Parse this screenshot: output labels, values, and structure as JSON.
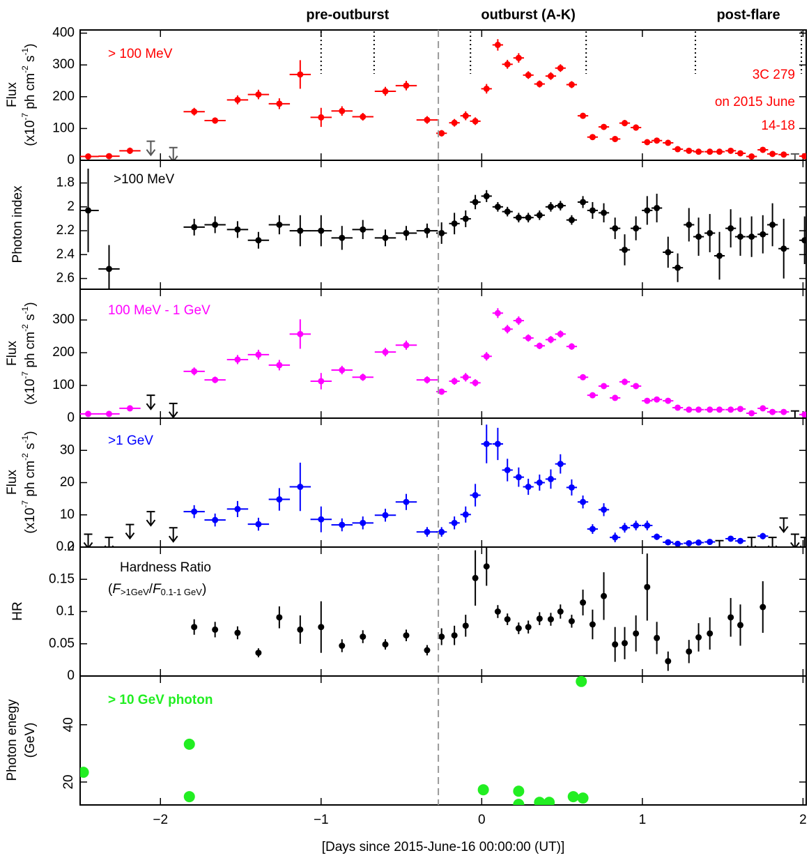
{
  "chart_data": [
    {
      "type": "errorbar",
      "label": "> 100 MeV",
      "source": [
        "3C 279",
        "on 2015 June",
        "14-18"
      ],
      "phases": [
        "pre-outburst",
        "outburst (A-K)",
        "post-flare"
      ],
      "phase_boundaries": [
        -1.0,
        -0.67,
        -0.07,
        0.65,
        1.33,
        1.99
      ],
      "reference_line": -0.27,
      "ylabel": "Flux",
      "ylabel_unit": [
        "(x10",
        "-7",
        " ph cm",
        "-2",
        " s",
        "-1",
        ")"
      ],
      "color": "#ff0000",
      "ylim": [
        0,
        410
      ],
      "yticks": [
        0,
        100,
        200,
        300,
        400
      ],
      "x": [
        -2.45,
        -2.32,
        -2.19,
        -2.06,
        -1.92,
        -1.79,
        -1.66,
        -1.52,
        -1.39,
        -1.26,
        -1.13,
        -1.0,
        -0.87,
        -0.74,
        -0.6,
        -0.47,
        -0.34,
        -0.25,
        -0.17,
        -0.1,
        -0.04,
        0.03,
        0.1,
        0.16,
        0.23,
        0.29,
        0.36,
        0.43,
        0.49,
        0.56,
        0.63,
        0.69,
        0.76,
        0.83,
        0.89,
        0.96,
        1.03,
        1.09,
        1.16,
        1.22,
        1.29,
        1.35,
        1.42,
        1.48,
        1.55,
        1.61,
        1.68,
        1.75,
        1.81,
        1.88,
        1.95,
        2.01
      ],
      "xerr": [
        0.066,
        0.066,
        0.066,
        0.066,
        0.066,
        0.066,
        0.066,
        0.066,
        0.066,
        0.066,
        0.066,
        0.066,
        0.066,
        0.066,
        0.066,
        0.066,
        0.066,
        0.033,
        0.033,
        0.033,
        0.033,
        0.033,
        0.033,
        0.033,
        0.033,
        0.033,
        0.033,
        0.033,
        0.033,
        0.033,
        0.033,
        0.033,
        0.033,
        0.033,
        0.033,
        0.033,
        0.033,
        0.033,
        0.033,
        0.033,
        0.033,
        0.033,
        0.033,
        0.033,
        0.033,
        0.033,
        0.033,
        0.033,
        0.033,
        0.033,
        0.033,
        0.033
      ],
      "values": [
        12,
        13,
        30,
        null,
        null,
        153,
        125,
        190,
        207,
        178,
        270,
        135,
        155,
        137,
        217,
        235,
        127,
        85,
        118,
        140,
        123,
        225,
        363,
        302,
        322,
        268,
        240,
        265,
        290,
        238,
        140,
        73,
        105,
        67,
        117,
        103,
        57,
        62,
        55,
        35,
        30,
        27,
        27,
        27,
        30,
        22,
        12,
        33,
        20,
        18,
        null,
        13
      ],
      "yerr": [
        4,
        4,
        10,
        null,
        null,
        12,
        10,
        14,
        15,
        17,
        45,
        30,
        15,
        12,
        14,
        15,
        12,
        10,
        12,
        14,
        12,
        15,
        18,
        14,
        15,
        12,
        11,
        12,
        12,
        11,
        7,
        7,
        8,
        7,
        10,
        10,
        6,
        6,
        5,
        4,
        4,
        4,
        4,
        4,
        4,
        4,
        3,
        4,
        3,
        3,
        null,
        3
      ],
      "upper_limits": {
        "x": [
          -2.06,
          -1.92,
          1.95
        ],
        "values": [
          60,
          40,
          20
        ],
        "color": "#555555"
      }
    },
    {
      "type": "errorbar",
      "label": ">100 MeV",
      "ylabel": "Photon index",
      "color": "#000000",
      "ylim": [
        2.69,
        1.61
      ],
      "yticks": [
        1.8,
        2,
        2.2,
        2.4,
        2.6
      ],
      "x": [
        -2.45,
        -2.32,
        -2.19,
        -2.06,
        -1.92,
        -1.79,
        -1.66,
        -1.52,
        -1.39,
        -1.26,
        -1.13,
        -1.0,
        -0.87,
        -0.74,
        -0.6,
        -0.47,
        -0.34,
        -0.25,
        -0.17,
        -0.1,
        -0.04,
        0.03,
        0.1,
        0.16,
        0.23,
        0.29,
        0.36,
        0.43,
        0.49,
        0.56,
        0.63,
        0.69,
        0.76,
        0.83,
        0.89,
        0.96,
        1.03,
        1.09,
        1.16,
        1.22,
        1.29,
        1.35,
        1.42,
        1.48,
        1.55,
        1.61,
        1.68,
        1.75,
        1.81,
        1.88,
        1.95,
        2.01
      ],
      "xerr": [
        0.066,
        0.066,
        0.066,
        0.066,
        0.066,
        0.066,
        0.066,
        0.066,
        0.066,
        0.066,
        0.066,
        0.066,
        0.066,
        0.066,
        0.066,
        0.066,
        0.066,
        0.033,
        0.033,
        0.033,
        0.033,
        0.033,
        0.033,
        0.033,
        0.033,
        0.033,
        0.033,
        0.033,
        0.033,
        0.033,
        0.033,
        0.033,
        0.033,
        0.033,
        0.033,
        0.033,
        0.033,
        0.033,
        0.033,
        0.033,
        0.033,
        0.033,
        0.033,
        0.033,
        0.033,
        0.033,
        0.033,
        0.033,
        0.033,
        0.033,
        0.033,
        0.033
      ],
      "values": [
        2.03,
        2.52,
        null,
        null,
        null,
        2.17,
        2.15,
        2.19,
        2.28,
        2.15,
        2.2,
        2.2,
        2.26,
        2.19,
        2.26,
        2.22,
        2.2,
        2.22,
        2.14,
        2.1,
        1.96,
        1.91,
        2.0,
        2.04,
        2.09,
        2.09,
        2.07,
        2.0,
        1.99,
        2.11,
        1.96,
        2.03,
        2.05,
        2.18,
        2.36,
        2.18,
        2.03,
        2.01,
        2.38,
        2.51,
        2.15,
        2.25,
        2.22,
        2.41,
        2.18,
        2.25,
        2.25,
        2.23,
        2.15,
        2.35,
        null,
        2.28
      ],
      "yerr": [
        0.35,
        0.2,
        null,
        null,
        null,
        0.07,
        0.07,
        0.07,
        0.07,
        0.08,
        0.13,
        0.13,
        0.1,
        0.08,
        0.07,
        0.06,
        0.06,
        0.09,
        0.09,
        0.07,
        0.06,
        0.05,
        0.04,
        0.04,
        0.04,
        0.04,
        0.04,
        0.04,
        0.04,
        0.04,
        0.05,
        0.07,
        0.08,
        0.09,
        0.13,
        0.1,
        0.12,
        0.12,
        0.13,
        0.12,
        0.14,
        0.16,
        0.16,
        0.2,
        0.16,
        0.16,
        0.17,
        0.16,
        0.18,
        0.25,
        null,
        0.2
      ]
    },
    {
      "type": "errorbar",
      "label": "100 MeV - 1 GeV",
      "ylabel": "Flux",
      "ylabel_unit": [
        "(x10",
        "-7",
        " ph cm",
        "-2",
        " s",
        "-1",
        ")"
      ],
      "color": "#ff00ff",
      "ylim": [
        0,
        394
      ],
      "yticks": [
        0,
        100,
        200,
        300
      ],
      "x": [
        -2.45,
        -2.32,
        -2.19,
        -2.06,
        -1.92,
        -1.79,
        -1.66,
        -1.52,
        -1.39,
        -1.26,
        -1.13,
        -1.0,
        -0.87,
        -0.74,
        -0.6,
        -0.47,
        -0.34,
        -0.25,
        -0.17,
        -0.1,
        -0.04,
        0.03,
        0.1,
        0.16,
        0.23,
        0.29,
        0.36,
        0.43,
        0.49,
        0.56,
        0.63,
        0.69,
        0.76,
        0.83,
        0.89,
        0.96,
        1.03,
        1.09,
        1.16,
        1.22,
        1.29,
        1.35,
        1.42,
        1.48,
        1.55,
        1.61,
        1.68,
        1.75,
        1.81,
        1.88,
        1.95,
        2.01
      ],
      "xerr": [
        0.066,
        0.066,
        0.066,
        0.066,
        0.066,
        0.066,
        0.066,
        0.066,
        0.066,
        0.066,
        0.066,
        0.066,
        0.066,
        0.066,
        0.066,
        0.066,
        0.066,
        0.033,
        0.033,
        0.033,
        0.033,
        0.033,
        0.033,
        0.033,
        0.033,
        0.033,
        0.033,
        0.033,
        0.033,
        0.033,
        0.033,
        0.033,
        0.033,
        0.033,
        0.033,
        0.033,
        0.033,
        0.033,
        0.033,
        0.033,
        0.033,
        0.033,
        0.033,
        0.033,
        0.033,
        0.033,
        0.033,
        0.033,
        0.033,
        0.033,
        0.033,
        0.033
      ],
      "values": [
        13,
        13,
        30,
        null,
        null,
        143,
        117,
        179,
        194,
        162,
        257,
        113,
        147,
        125,
        202,
        223,
        117,
        81,
        113,
        125,
        108,
        189,
        321,
        272,
        298,
        245,
        221,
        240,
        257,
        219,
        125,
        70,
        98,
        62,
        111,
        98,
        53,
        57,
        53,
        32,
        26,
        26,
        26,
        26,
        26,
        28,
        15,
        30,
        19,
        19,
        null,
        11
      ],
      "yerr": [
        4,
        4,
        9,
        null,
        null,
        12,
        10,
        14,
        15,
        16,
        45,
        25,
        13,
        11,
        13,
        14,
        11,
        9,
        11,
        13,
        11,
        13,
        15,
        13,
        13,
        11,
        10,
        11,
        11,
        10,
        6,
        6,
        8,
        6,
        10,
        9,
        5,
        5,
        5,
        4,
        4,
        4,
        4,
        4,
        4,
        4,
        3,
        4,
        3,
        3,
        null,
        3
      ],
      "upper_limits": {
        "x": [
          -2.06,
          -1.92,
          1.95
        ],
        "values": [
          70,
          45,
          22
        ],
        "color": "#000000"
      }
    },
    {
      "type": "errorbar",
      "label": ">1 GeV",
      "ylabel": "Flux",
      "ylabel_unit": [
        "(x10",
        "-7",
        " ph cm",
        "-2",
        " s",
        "-1",
        ")"
      ],
      "color": "#0000ff",
      "ylim": [
        0,
        40
      ],
      "yticks": [
        0,
        10,
        20,
        30
      ],
      "x": [
        -2.45,
        -2.32,
        -2.19,
        -2.06,
        -1.92,
        -1.79,
        -1.66,
        -1.52,
        -1.39,
        -1.26,
        -1.13,
        -1.0,
        -0.87,
        -0.74,
        -0.6,
        -0.47,
        -0.34,
        -0.25,
        -0.17,
        -0.1,
        -0.04,
        0.03,
        0.1,
        0.16,
        0.23,
        0.29,
        0.36,
        0.43,
        0.49,
        0.56,
        0.63,
        0.69,
        0.76,
        0.83,
        0.89,
        0.96,
        1.03,
        1.09,
        1.16,
        1.22,
        1.29,
        1.35,
        1.42,
        1.48,
        1.55,
        1.61,
        1.68,
        1.75,
        1.81,
        1.88,
        1.95,
        2.01
      ],
      "xerr": [
        0.066,
        0.066,
        0.066,
        0.066,
        0.066,
        0.066,
        0.066,
        0.066,
        0.066,
        0.066,
        0.066,
        0.066,
        0.066,
        0.066,
        0.066,
        0.066,
        0.066,
        0.033,
        0.033,
        0.033,
        0.033,
        0.033,
        0.033,
        0.033,
        0.033,
        0.033,
        0.033,
        0.033,
        0.033,
        0.033,
        0.033,
        0.033,
        0.033,
        0.033,
        0.033,
        0.033,
        0.033,
        0.033,
        0.033,
        0.033,
        0.033,
        0.033,
        0.033,
        0.033,
        0.033,
        0.033,
        0.033,
        0.033,
        0.033,
        0.033,
        0.033,
        0.033
      ],
      "values": [
        null,
        null,
        null,
        null,
        null,
        11,
        8.4,
        11.8,
        7.1,
        14.8,
        18.7,
        8.6,
        6.9,
        7.5,
        9.9,
        14,
        4.7,
        4.7,
        7.5,
        10.1,
        16.1,
        32,
        32,
        23.9,
        21.7,
        18.7,
        20,
        21.1,
        25.8,
        18.5,
        14,
        5.6,
        11.6,
        3,
        6,
        6.7,
        6.7,
        3.2,
        1.5,
        1.0,
        1.2,
        1.4,
        1.6,
        null,
        2.6,
        1.9,
        null,
        3.4,
        null,
        null,
        null,
        null
      ],
      "yerr": [
        null,
        null,
        null,
        null,
        null,
        2,
        2,
        2.5,
        2,
        3.5,
        7.5,
        4,
        2,
        2,
        2,
        2.5,
        1.5,
        1.5,
        2,
        2.5,
        3.5,
        6,
        5,
        3.5,
        3,
        2.5,
        2.5,
        3,
        3,
        2.5,
        2,
        1.5,
        2,
        1.5,
        1.5,
        1.5,
        1.5,
        1,
        0.5,
        0.5,
        0.5,
        0.5,
        0.5,
        null,
        0.5,
        0.5,
        null,
        1,
        null,
        null,
        null,
        null
      ],
      "upper_limits": {
        "x": [
          -2.45,
          -2.32,
          -2.19,
          -2.06,
          -1.92,
          1.48,
          1.68,
          1.81,
          1.88,
          1.95,
          2.01
        ],
        "values": [
          4,
          3,
          7,
          11,
          6,
          2,
          3,
          3,
          9,
          4,
          3
        ],
        "color": "#000000"
      }
    },
    {
      "type": "errorbar",
      "label": "Hardness Ratio",
      "label_formula": [
        "(",
        "F",
        ">1GeV",
        "/",
        "F",
        "0.1-1 GeV",
        ")"
      ],
      "ylabel": "HR",
      "color": "#000000",
      "ylim": [
        0,
        0.2
      ],
      "yticks": [
        0,
        0.05,
        0.1,
        0.15,
        0.2
      ],
      "x": [
        -2.45,
        -2.32,
        -2.19,
        -2.06,
        -1.92,
        -1.79,
        -1.66,
        -1.52,
        -1.39,
        -1.26,
        -1.13,
        -1.0,
        -0.87,
        -0.74,
        -0.6,
        -0.47,
        -0.34,
        -0.25,
        -0.17,
        -0.1,
        -0.04,
        0.03,
        0.1,
        0.16,
        0.23,
        0.29,
        0.36,
        0.43,
        0.49,
        0.56,
        0.63,
        0.69,
        0.76,
        0.83,
        0.89,
        0.96,
        1.03,
        1.09,
        1.16,
        1.22,
        1.29,
        1.35,
        1.42,
        1.48,
        1.55,
        1.61,
        1.68,
        1.75,
        1.81,
        1.88,
        1.95,
        2.01
      ],
      "values": [
        null,
        null,
        null,
        null,
        null,
        0.076,
        0.072,
        0.067,
        0.036,
        0.091,
        0.072,
        0.076,
        0.047,
        0.061,
        0.049,
        0.063,
        0.04,
        0.061,
        0.063,
        0.078,
        0.152,
        0.17,
        0.1,
        0.088,
        0.074,
        0.076,
        0.089,
        0.088,
        0.1,
        0.085,
        0.114,
        0.08,
        0.124,
        0.049,
        0.051,
        0.066,
        0.138,
        0.059,
        0.023,
        null,
        0.038,
        0.06,
        0.066,
        null,
        0.091,
        0.079,
        null,
        0.107,
        null,
        null,
        null,
        null
      ],
      "yerr": [
        null,
        null,
        null,
        null,
        null,
        0.012,
        0.012,
        0.01,
        0.007,
        0.017,
        0.022,
        0.04,
        0.01,
        0.01,
        0.008,
        0.009,
        0.008,
        0.013,
        0.015,
        0.017,
        0.043,
        0.03,
        0.01,
        0.009,
        0.009,
        0.01,
        0.01,
        0.01,
        0.011,
        0.01,
        0.02,
        0.023,
        0.037,
        0.027,
        0.025,
        0.028,
        0.052,
        0.025,
        0.015,
        null,
        0.018,
        0.022,
        0.025,
        null,
        0.03,
        0.032,
        null,
        0.04,
        null,
        null,
        null,
        null
      ]
    },
    {
      "type": "scatter",
      "label": "> 10 GeV photon",
      "ylabel": "Photon enegy",
      "ylabel_unit": "(GeV)",
      "color": "#22ee22",
      "ylim": [
        12,
        57
      ],
      "yticks": [
        20,
        40
      ],
      "ytick_rotation": -90,
      "x": [
        -2.48,
        -1.82,
        -1.82,
        0.01,
        0.23,
        0.23,
        0.36,
        0.42,
        0.57,
        0.62,
        0.63
      ],
      "values": [
        23.4,
        33.2,
        14.9,
        17.3,
        16.8,
        12.2,
        12.9,
        12.9,
        14.9,
        55.1,
        14.4
      ],
      "xlim": [
        -2.5,
        2.02
      ],
      "xticks": [
        {
          "value": -2,
          "label": "−2"
        },
        {
          "value": -1,
          "label": "−1"
        },
        0,
        1,
        2
      ],
      "xlabel": "[Days since 2015-June-16 00:00:00 (UT)]"
    }
  ]
}
